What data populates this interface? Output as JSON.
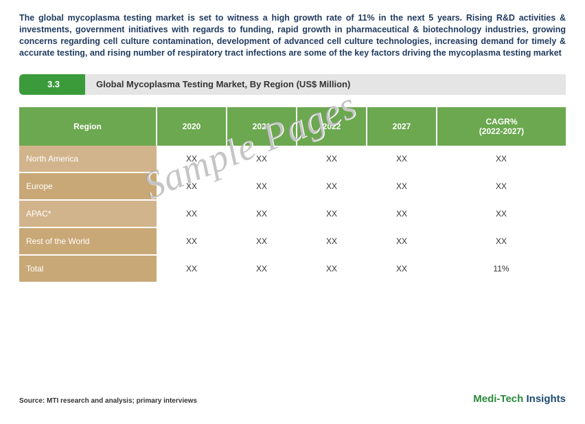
{
  "intro": "The global mycoplasma testing market is set to witness a high growth rate of 11% in the next 5 years. Rising R&D activities & investments, government initiatives with regards to funding, rapid growth in pharmaceutical & biotechnology industries, growing concerns regarding cell culture contamination, development of advanced cell culture technologies, increasing demand for timely & accurate testing, and rising number of respiratory tract infections are some of the key factors driving the mycoplasma testing market",
  "section": {
    "num": "3.3",
    "title": "Global Mycoplasma Testing Market, By Region (US$ Million)"
  },
  "table": {
    "columns": [
      "Region",
      "2020",
      "2021",
      "2022",
      "2027",
      "CAGR%\n(2022-2027)"
    ],
    "rows": [
      {
        "region": "North America",
        "v": [
          "XX",
          "XX",
          "XX",
          "XX",
          "XX"
        ],
        "cls": "row-odd"
      },
      {
        "region": "Europe",
        "v": [
          "XX",
          "XX",
          "XX",
          "XX",
          "XX"
        ],
        "cls": "row-even"
      },
      {
        "region": "APAC*",
        "v": [
          "XX",
          "XX",
          "XX",
          "XX",
          "XX"
        ],
        "cls": "row-odd"
      },
      {
        "region": "Rest of the World",
        "v": [
          "XX",
          "XX",
          "XX",
          "XX",
          "XX"
        ],
        "cls": "row-even"
      },
      {
        "region": "Total",
        "v": [
          "XX",
          "XX",
          "XX",
          "XX",
          "11%"
        ],
        "cls": "row-total"
      }
    ],
    "header_bg": "#6ba84f",
    "row_odd_bg": "#d2b48c",
    "row_even_bg": "#c9a877"
  },
  "source": "Source: MTI research and analysis; primary interviews",
  "brand": {
    "a": "Medi-Tech ",
    "b": "Insights"
  },
  "watermark": "Sample Pages"
}
